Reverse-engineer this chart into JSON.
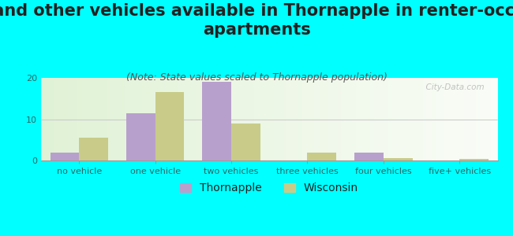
{
  "title": "Cars and other vehicles available in Thornapple in renter-occupied\napartments",
  "subtitle": "(Note: State values scaled to Thornapple population)",
  "categories": [
    "no vehicle",
    "one vehicle",
    "two vehicles",
    "three vehicles",
    "four vehicles",
    "five+ vehicles"
  ],
  "thornapple_values": [
    2,
    11.5,
    19,
    0,
    2,
    0
  ],
  "wisconsin_values": [
    5.5,
    16.5,
    9,
    2,
    0.5,
    0.3
  ],
  "thornapple_color": "#b8a0cc",
  "wisconsin_color": "#c8cc88",
  "background_color": "#00ffff",
  "ylim": [
    0,
    20
  ],
  "yticks": [
    0,
    10,
    20
  ],
  "bar_width": 0.38,
  "title_fontsize": 15,
  "subtitle_fontsize": 9,
  "tick_fontsize": 8,
  "legend_fontsize": 10,
  "watermark_text": "  City-Data.com"
}
